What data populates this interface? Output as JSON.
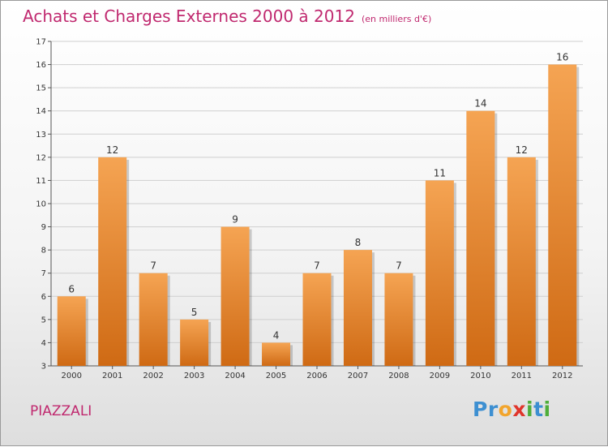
{
  "title": "Achats et Charges Externes 2000 à 2012",
  "subtitle": "(en milliers d'€)",
  "commune": "PIAZZALI",
  "logo": {
    "letters": [
      {
        "ch": "P",
        "color": "#3d8fd1"
      },
      {
        "ch": "r",
        "color": "#3d8fd1"
      },
      {
        "ch": "o",
        "color": "#f2a52d"
      },
      {
        "ch": "x",
        "color": "#e0352b"
      },
      {
        "ch": "i",
        "color": "#4fae3a"
      },
      {
        "ch": "t",
        "color": "#3d8fd1"
      },
      {
        "ch": "i",
        "color": "#4fae3a"
      }
    ]
  },
  "colors": {
    "bar_light": "#f5a453",
    "bar_dark": "#cf6a14",
    "title": "#c0296f",
    "grid": "#cfcfcf"
  },
  "chart_data": {
    "type": "bar",
    "categories": [
      "2000",
      "2001",
      "2002",
      "2003",
      "2004",
      "2005",
      "2006",
      "2007",
      "2008",
      "2009",
      "2010",
      "2011",
      "2012"
    ],
    "values": [
      6,
      12,
      7,
      5,
      9,
      4,
      7,
      8,
      7,
      11,
      14,
      12,
      16
    ],
    "ylim": [
      3,
      17
    ],
    "yticks": [
      3,
      4,
      5,
      6,
      7,
      8,
      9,
      10,
      11,
      12,
      13,
      14,
      15,
      16,
      17
    ],
    "grid": true,
    "data_labels": true
  }
}
